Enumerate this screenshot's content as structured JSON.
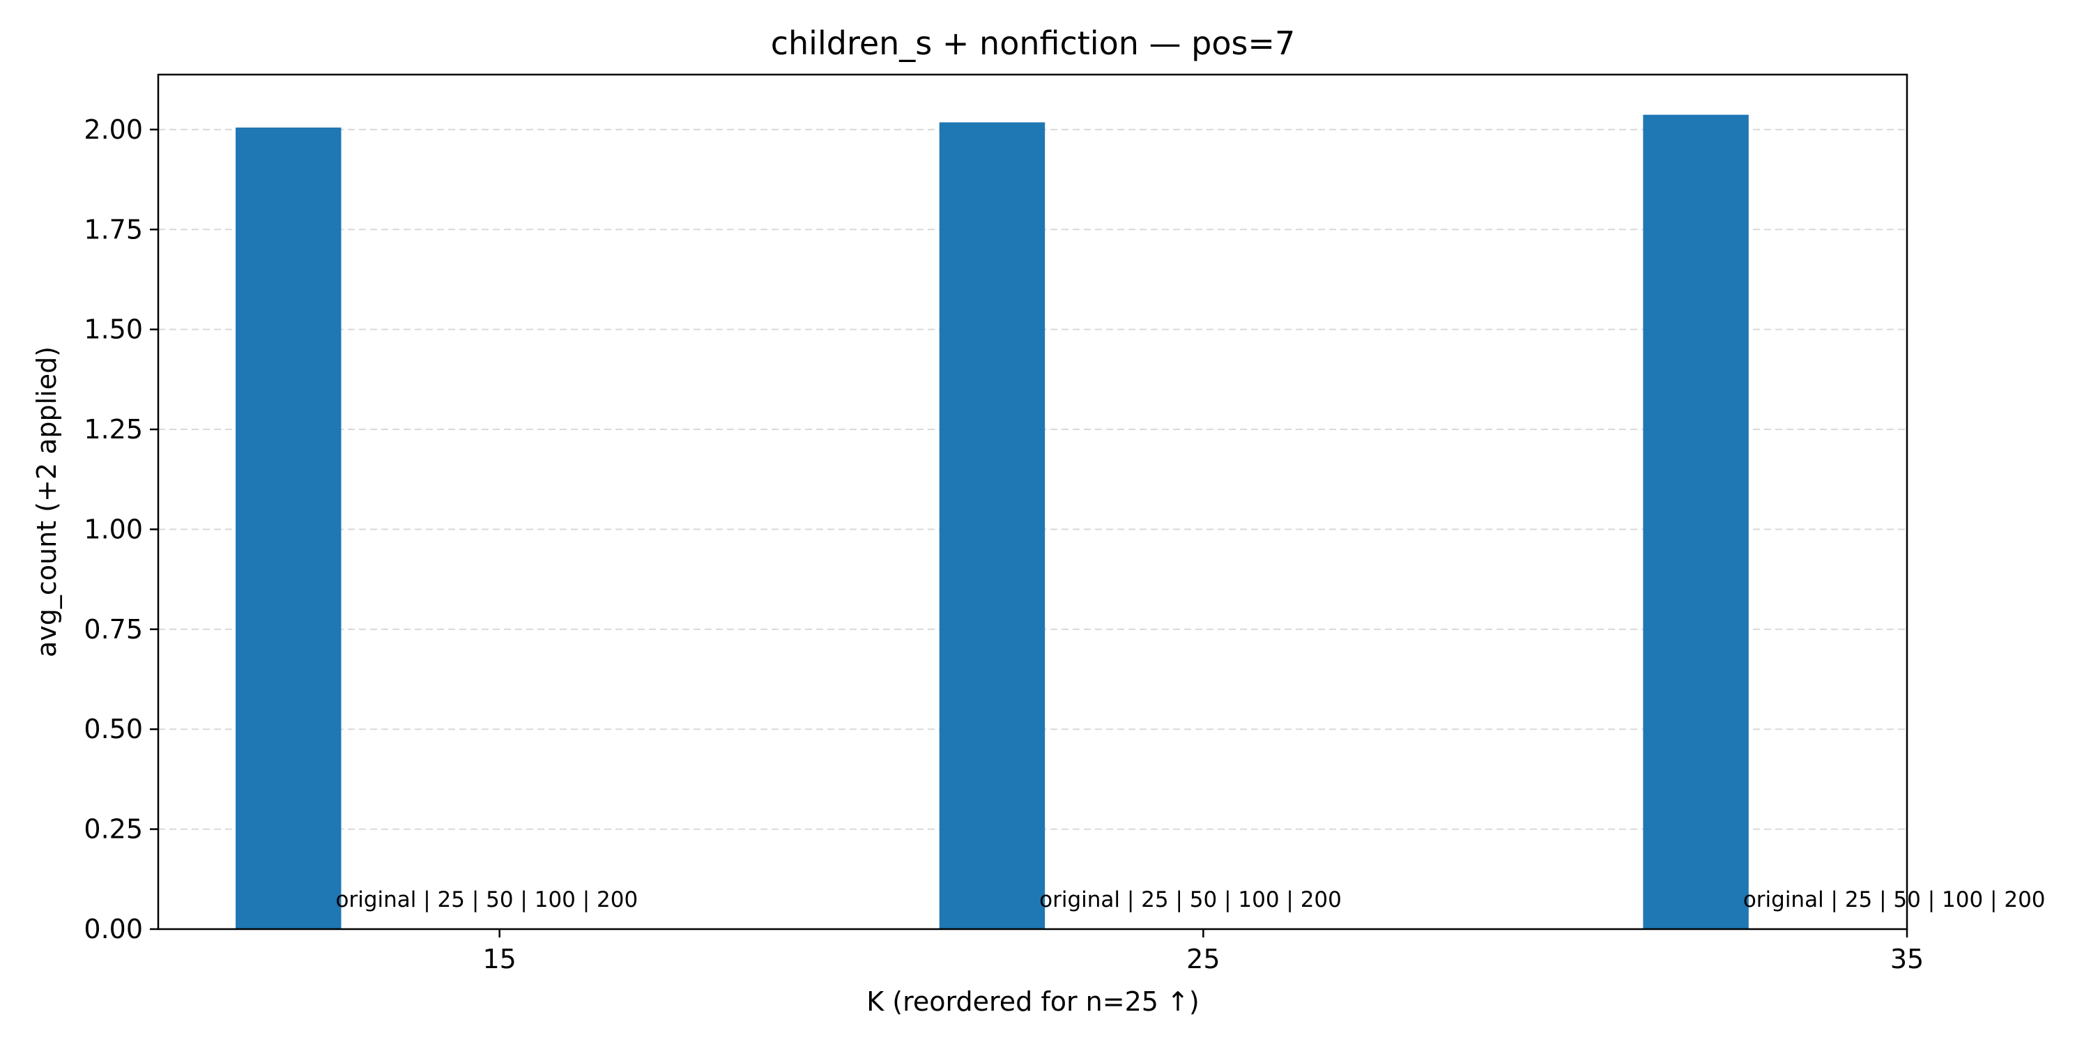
{
  "chart_data": {
    "type": "bar",
    "title": "children_s + nonfiction — pos=7",
    "xlabel": "K (reordered for n=25 ↑)",
    "ylabel": "avg_count (+2 applied)",
    "xlim": [
      10.15,
      35
    ],
    "ylim": [
      0,
      2.1375
    ],
    "x_ticks": [
      15,
      25,
      35
    ],
    "y_ticks": [
      0.0,
      0.25,
      0.5,
      0.75,
      1.0,
      1.25,
      1.5,
      1.75,
      2.0
    ],
    "x_tick_labels": [
      "15",
      "25",
      "35"
    ],
    "y_tick_labels": [
      "0.00",
      "0.25",
      "0.50",
      "0.75",
      "1.00",
      "1.25",
      "1.50",
      "1.75",
      "2.00"
    ],
    "bar_width": 1.5,
    "grid": {
      "axis": "y",
      "style": "dashed"
    },
    "bars": [
      {
        "x": 12,
        "value": 2.005,
        "label": "original | 25 | 50 | 100 | 200"
      },
      {
        "x": 22,
        "value": 2.018,
        "label": "original | 25 | 50 | 100 | 200"
      },
      {
        "x": 32,
        "value": 2.037,
        "label": "original | 25 | 50 | 100 | 200"
      }
    ],
    "colors": {
      "bar": "#1f77b4",
      "grid": "#d9d9d9",
      "axes": "#000000"
    }
  }
}
